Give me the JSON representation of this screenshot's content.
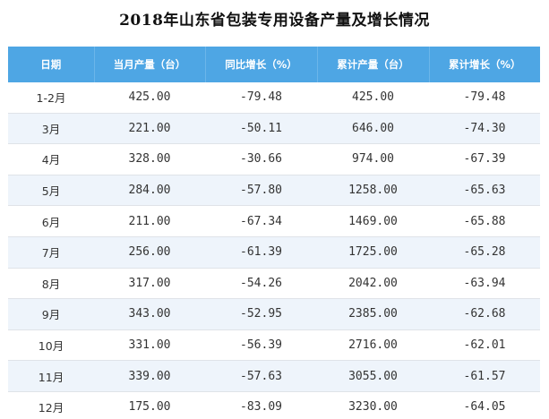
{
  "title": "2018年山东省包装专用设备产量及增长情况",
  "table": {
    "headers": [
      "日期",
      "当月产量（台）",
      "同比增长（%）",
      "累计产量（台）",
      "累计增长（%）"
    ],
    "rows": [
      [
        "1-2月",
        "425.00",
        "-79.48",
        "425.00",
        "-79.48"
      ],
      [
        "3月",
        "221.00",
        "-50.11",
        "646.00",
        "-74.30"
      ],
      [
        "4月",
        "328.00",
        "-30.66",
        "974.00",
        "-67.39"
      ],
      [
        "5月",
        "284.00",
        "-57.80",
        "1258.00",
        "-65.63"
      ],
      [
        "6月",
        "211.00",
        "-67.34",
        "1469.00",
        "-65.88"
      ],
      [
        "7月",
        "256.00",
        "-61.39",
        "1725.00",
        "-65.28"
      ],
      [
        "8月",
        "317.00",
        "-54.26",
        "2042.00",
        "-63.94"
      ],
      [
        "9月",
        "343.00",
        "-52.95",
        "2385.00",
        "-62.68"
      ],
      [
        "10月",
        "331.00",
        "-56.39",
        "2716.00",
        "-62.01"
      ],
      [
        "11月",
        "339.00",
        "-57.63",
        "3055.00",
        "-61.57"
      ],
      [
        "12月",
        "175.00",
        "-83.09",
        "3230.00",
        "-64.05"
      ]
    ]
  }
}
